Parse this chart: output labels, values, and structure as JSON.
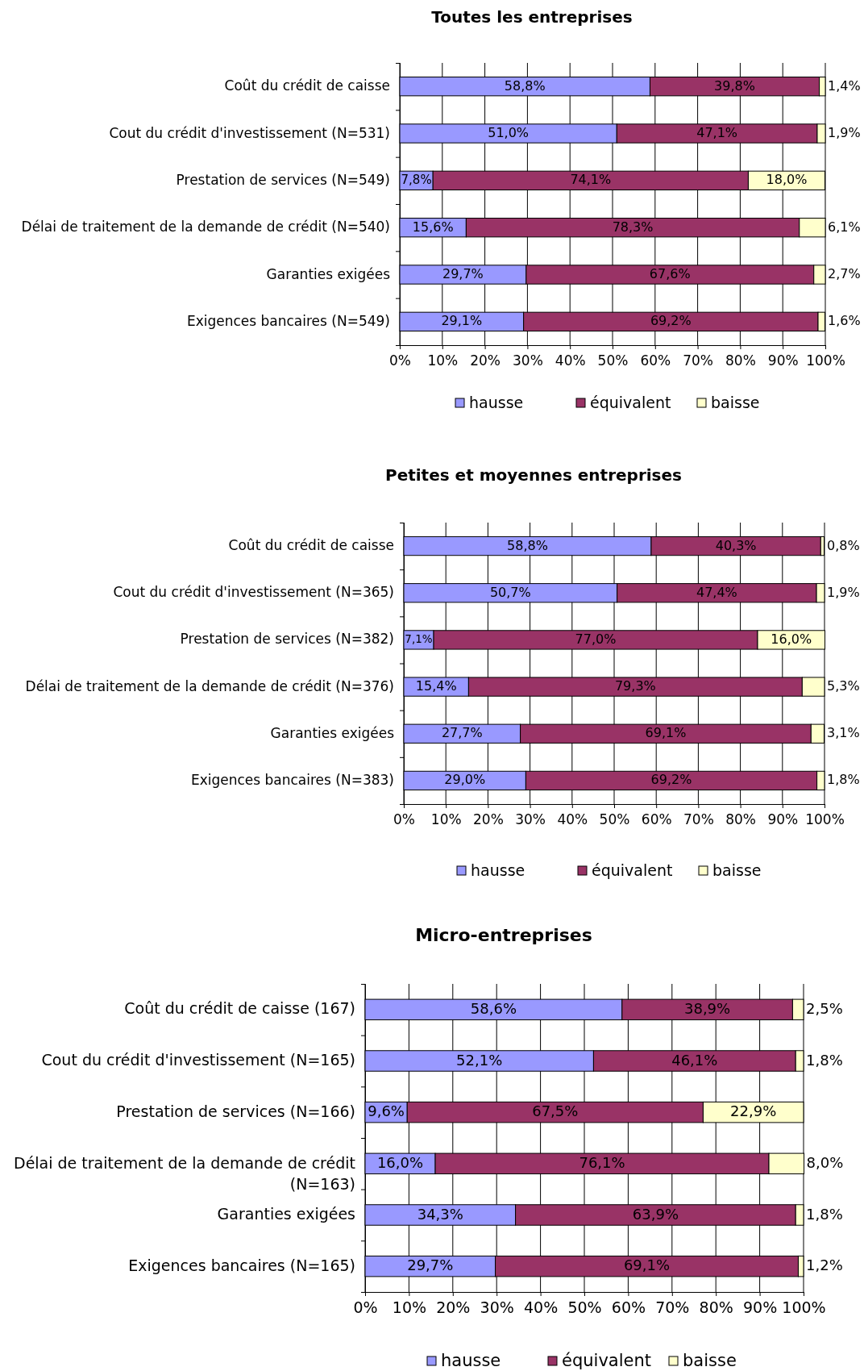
{
  "chart_data": [
    {
      "type": "bar",
      "orientation": "horizontal",
      "stacked": true,
      "title": "Toutes les entreprises",
      "categories": [
        "Coût du crédit de caisse",
        "Cout du crédit d'investissement (N=531)",
        "Prestation de services (N=549)",
        "Délai de traitement de la demande de crédit (N=540)",
        "Garanties exigées",
        "Exigences bancaires (N=549)"
      ],
      "series": [
        {
          "name": "hausse",
          "color": "#9999ff",
          "values": [
            58.8,
            51.0,
            7.8,
            15.6,
            29.7,
            29.1
          ],
          "value_labels": [
            "58,8%",
            "51,0%",
            "7,8%",
            "15,6%",
            "29,7%",
            "29,1%"
          ]
        },
        {
          "name": "équivalent",
          "color": "#993366",
          "values": [
            39.8,
            47.1,
            74.1,
            78.3,
            67.6,
            69.2
          ],
          "value_labels": [
            "39,8%",
            "47,1%",
            "74,1%",
            "78,3%",
            "67,6%",
            "69,2%"
          ]
        },
        {
          "name": "baisse",
          "color": "#ffffcc",
          "values": [
            1.4,
            1.9,
            18.0,
            6.1,
            2.7,
            1.6
          ],
          "value_labels": [
            "1,4%",
            "1,9%",
            "18,0%",
            "6,1%",
            "2,7%",
            "1,6%"
          ]
        }
      ],
      "xlim": [
        0,
        100
      ],
      "xticks": [
        {
          "value": 0,
          "label": "0%"
        },
        {
          "value": 10,
          "label": "10%"
        },
        {
          "value": 20,
          "label": "20%"
        },
        {
          "value": 30,
          "label": "30%"
        },
        {
          "value": 40,
          "label": "40%"
        },
        {
          "value": 50,
          "label": "50%"
        },
        {
          "value": 60,
          "label": "60%"
        },
        {
          "value": 70,
          "label": "70%"
        },
        {
          "value": 80,
          "label": "80%"
        },
        {
          "value": 90,
          "label": "90%"
        },
        {
          "value": 100,
          "label": "100%"
        }
      ],
      "grid": "x",
      "legend": "bottom"
    },
    {
      "type": "bar",
      "orientation": "horizontal",
      "stacked": true,
      "title": "Petites et moyennes entreprises",
      "categories": [
        "Coût du crédit de caisse",
        "Cout du crédit d'investissement (N=365)",
        "Prestation de services (N=382)",
        "Délai de traitement de la demande de crédit (N=376)",
        "Garanties exigées",
        "Exigences bancaires (N=383)"
      ],
      "series": [
        {
          "name": "hausse",
          "color": "#9999ff",
          "values": [
            58.8,
            50.7,
            7.1,
            15.4,
            27.7,
            29.0
          ],
          "value_labels": [
            "58,8%",
            "50,7%",
            "7,1%",
            "15,4%",
            "27,7%",
            "29,0%"
          ]
        },
        {
          "name": "équivalent",
          "color": "#993366",
          "values": [
            40.3,
            47.4,
            77.0,
            79.3,
            69.1,
            69.2
          ],
          "value_labels": [
            "40,3%",
            "47,4%",
            "77,0%",
            "79,3%",
            "69,1%",
            "69,2%"
          ]
        },
        {
          "name": "baisse",
          "color": "#ffffcc",
          "values": [
            0.8,
            1.9,
            16.0,
            5.3,
            3.1,
            1.8
          ],
          "value_labels": [
            "0,8%",
            "1,9%",
            "16,0%",
            "5,3%",
            "3,1%",
            "1,8%"
          ]
        }
      ],
      "xlim": [
        0,
        100
      ],
      "xticks": [
        {
          "value": 0,
          "label": "0%"
        },
        {
          "value": 10,
          "label": "10%"
        },
        {
          "value": 20,
          "label": "20%"
        },
        {
          "value": 30,
          "label": "30%"
        },
        {
          "value": 40,
          "label": "40%"
        },
        {
          "value": 50,
          "label": "50%"
        },
        {
          "value": 60,
          "label": "60%"
        },
        {
          "value": 70,
          "label": "70%"
        },
        {
          "value": 80,
          "label": "80%"
        },
        {
          "value": 90,
          "label": "90%"
        },
        {
          "value": 100,
          "label": "100%"
        }
      ],
      "grid": "x",
      "legend": "bottom"
    },
    {
      "type": "bar",
      "orientation": "horizontal",
      "stacked": true,
      "title": "Micro-entreprises",
      "categories": [
        "Coût du crédit de caisse (167)",
        "Cout du crédit d'investissement (N=165)",
        "Prestation de services (N=166)",
        "Délai de traitement de la demande de crédit (N=163)",
        "Garanties exigées",
        "Exigences bancaires (N=165)"
      ],
      "series": [
        {
          "name": "hausse",
          "color": "#9999ff",
          "values": [
            58.6,
            52.1,
            9.6,
            16.0,
            34.3,
            29.7
          ],
          "value_labels": [
            "58,6%",
            "52,1%",
            "9,6%",
            "16,0%",
            "34,3%",
            "29,7%"
          ]
        },
        {
          "name": "équivalent",
          "color": "#993366",
          "values": [
            38.9,
            46.1,
            67.5,
            76.1,
            63.9,
            69.1
          ],
          "value_labels": [
            "38,9%",
            "46,1%",
            "67,5%",
            "76,1%",
            "63,9%",
            "69,1%"
          ]
        },
        {
          "name": "baisse",
          "color": "#ffffcc",
          "values": [
            2.5,
            1.8,
            22.9,
            8.0,
            1.8,
            1.2
          ],
          "value_labels": [
            "2,5%",
            "1,8%",
            "22,9%",
            "8,0%",
            "1,8%",
            "1,2%"
          ]
        }
      ],
      "xlim": [
        0,
        100
      ],
      "xticks": [
        {
          "value": 0,
          "label": "0%"
        },
        {
          "value": 10,
          "label": "10%"
        },
        {
          "value": 20,
          "label": "20%"
        },
        {
          "value": 30,
          "label": "30%"
        },
        {
          "value": 40,
          "label": "40%"
        },
        {
          "value": 50,
          "label": "50%"
        },
        {
          "value": 60,
          "label": "60%"
        },
        {
          "value": 70,
          "label": "70%"
        },
        {
          "value": 80,
          "label": "80%"
        },
        {
          "value": 90,
          "label": "90%"
        },
        {
          "value": 100,
          "label": "100%"
        }
      ],
      "grid": "x",
      "legend": "bottom"
    }
  ]
}
